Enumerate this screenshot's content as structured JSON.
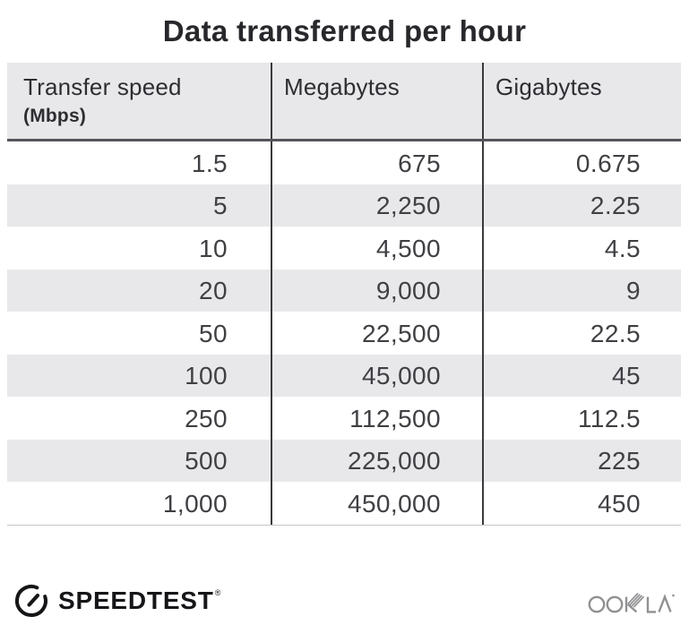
{
  "title": "Data transferred per hour",
  "table": {
    "headers": [
      {
        "label": "Transfer speed",
        "sub": "(Mbps)"
      },
      {
        "label": "Megabytes"
      },
      {
        "label": "Gigabytes"
      }
    ],
    "rows": [
      [
        "1.5",
        "675",
        "0.675"
      ],
      [
        "5",
        "2,250",
        "2.25"
      ],
      [
        "10",
        "4,500",
        "4.5"
      ],
      [
        "20",
        "9,000",
        "9"
      ],
      [
        "50",
        "22,500",
        "22.5"
      ],
      [
        "100",
        "45,000",
        "45"
      ],
      [
        "250",
        "112,500",
        "112.5"
      ],
      [
        "500",
        "225,000",
        "225"
      ],
      [
        "1,000",
        "450,000",
        "450"
      ]
    ]
  },
  "chart_data": {
    "type": "table",
    "title": "Data transferred per hour",
    "columns": [
      "Transfer speed (Mbps)",
      "Megabytes",
      "Gigabytes"
    ],
    "rows": [
      [
        1.5,
        675,
        0.675
      ],
      [
        5,
        2250,
        2.25
      ],
      [
        10,
        4500,
        4.5
      ],
      [
        20,
        9000,
        9
      ],
      [
        50,
        22500,
        22.5
      ],
      [
        100,
        45000,
        45
      ],
      [
        250,
        112500,
        112.5
      ],
      [
        500,
        225000,
        225
      ],
      [
        1000,
        450000,
        450
      ]
    ],
    "layout_hints": {
      "zebra_striping": true,
      "striped_rows": "even rows shaded light gray, header shaded",
      "column_alignment": "right",
      "vertical_dividers": true
    }
  },
  "footer": {
    "speedtest_label": "SPEEDTEST",
    "speedtest_trademark": "®",
    "ookla_label": "OOKLA",
    "icons": {
      "speedtest_gauge": "gauge-circle-with-needle-open-upper-right",
      "ookla_wordmark": "stylized-ookla-wordmark-with-hatched-k"
    }
  },
  "colors": {
    "band": "#e8e7ea",
    "divider": "#3a393c",
    "header_underline": "#56545a",
    "bottom_line": "#c7c6c9",
    "text": "#403f43",
    "header_text": "#2e2d31",
    "title_text": "#28272b",
    "brand_black": "#161518",
    "ookla_gray": "#919093"
  }
}
